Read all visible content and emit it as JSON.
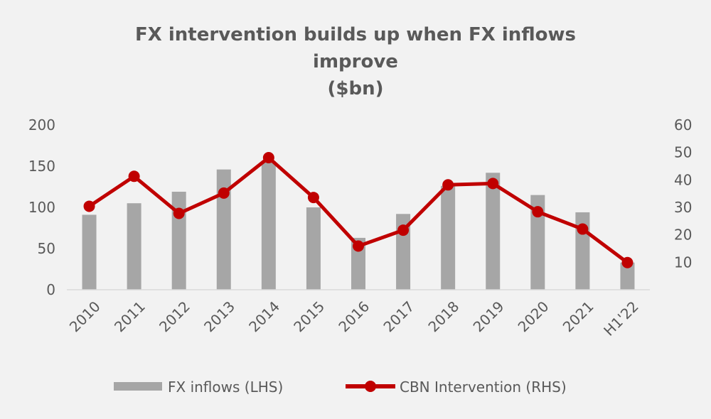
{
  "chart_data": {
    "type": "bar+line",
    "title_lines": [
      "FX intervention builds up when FX inflows",
      "improve",
      "($bn)"
    ],
    "categories": [
      "2010",
      "2011",
      "2012",
      "2013",
      "2014",
      "2015",
      "2016",
      "2017",
      "2018",
      "2019",
      "2020",
      "2021",
      "H1'22"
    ],
    "series": [
      {
        "name": "FX inflows (LHS)",
        "type": "bar",
        "axis": "left",
        "color": "#a6a6a6",
        "values": [
          91,
          105,
          119,
          146,
          156,
          100,
          63,
          92,
          126,
          142,
          115,
          94,
          33
        ]
      },
      {
        "name": "CBN Intervention (RHS)",
        "type": "line",
        "axis": "right",
        "color": "#c00000",
        "values": [
          30.4,
          41.3,
          27.8,
          35.2,
          48.1,
          33.6,
          15.9,
          21.7,
          38.2,
          38.7,
          28.4,
          22.1,
          9.9
        ]
      }
    ],
    "y_left": {
      "min": 0,
      "max": 200,
      "ticks": [
        0,
        50,
        100,
        150,
        200
      ]
    },
    "y_right": {
      "min": 0,
      "max": 60,
      "ticks": [
        10,
        20,
        30,
        40,
        50,
        60
      ]
    },
    "grid": false,
    "legend_position": "bottom"
  }
}
